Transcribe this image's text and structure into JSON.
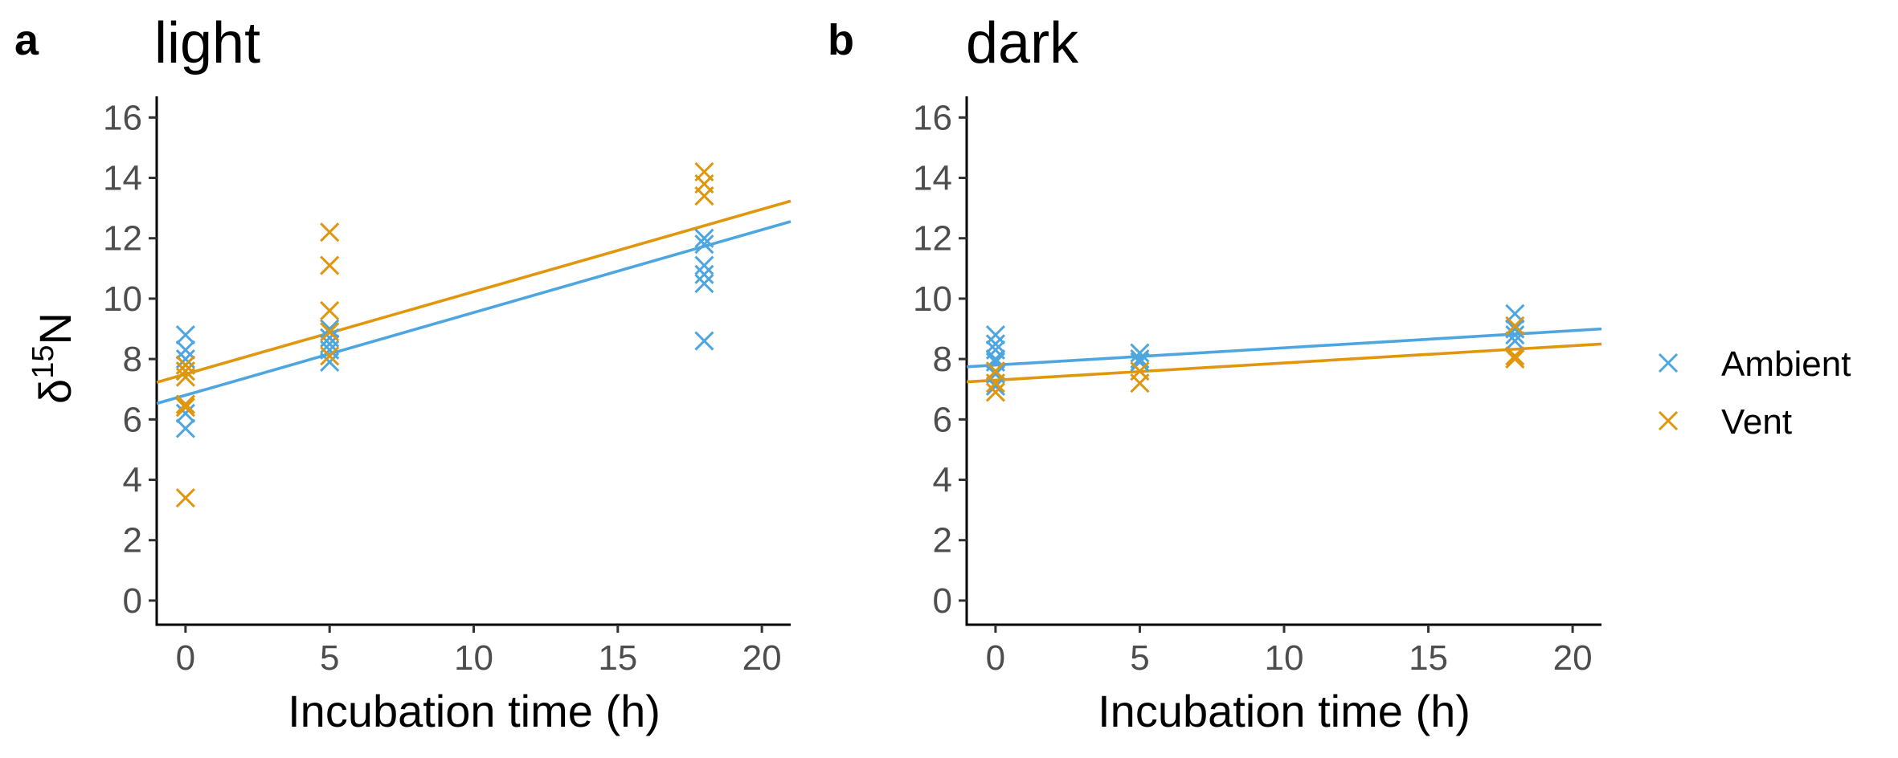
{
  "chart_data": [
    {
      "type": "scatter",
      "panel": "a",
      "title": "light",
      "xlabel": "Incubation time (h)",
      "ylabel_base": "δ",
      "ylabel_sup": "15",
      "ylabel_tail": "N",
      "xlim": [
        -1,
        21
      ],
      "ylim": [
        -0.8,
        16.7
      ],
      "xticks": [
        0,
        5,
        10,
        15,
        20
      ],
      "yticks": [
        0,
        2,
        4,
        6,
        8,
        10,
        12,
        14,
        16
      ],
      "grid": false,
      "series": [
        {
          "name": "Ambient",
          "color": "#4da6df",
          "points": [
            [
              0,
              8.8
            ],
            [
              0,
              8.3
            ],
            [
              0,
              8.0
            ],
            [
              0,
              7.8
            ],
            [
              0,
              7.6
            ],
            [
              0,
              6.5
            ],
            [
              0,
              6.2
            ],
            [
              0,
              5.7
            ],
            [
              5,
              9.0
            ],
            [
              5,
              8.7
            ],
            [
              5,
              8.5
            ],
            [
              5,
              8.3
            ],
            [
              5,
              7.9
            ],
            [
              18,
              12.0
            ],
            [
              18,
              11.8
            ],
            [
              18,
              11.1
            ],
            [
              18,
              10.8
            ],
            [
              18,
              10.5
            ],
            [
              18,
              8.6
            ]
          ],
          "fit": {
            "intercept": 6.8,
            "slope": 0.274
          }
        },
        {
          "name": "Vent",
          "color": "#e0960d",
          "points": [
            [
              0,
              7.8
            ],
            [
              0,
              7.6
            ],
            [
              0,
              7.4
            ],
            [
              0,
              6.5
            ],
            [
              0,
              6.4
            ],
            [
              0,
              3.4
            ],
            [
              5,
              12.2
            ],
            [
              5,
              11.1
            ],
            [
              5,
              9.6
            ],
            [
              5,
              8.9
            ],
            [
              5,
              8.1
            ],
            [
              18,
              14.2
            ],
            [
              18,
              13.8
            ],
            [
              18,
              13.4
            ]
          ],
          "fit": {
            "intercept": 7.5,
            "slope": 0.273
          }
        }
      ]
    },
    {
      "type": "scatter",
      "panel": "b",
      "title": "dark",
      "xlabel": "Incubation time (h)",
      "xlim": [
        -1,
        21
      ],
      "ylim": [
        -0.8,
        16.7
      ],
      "xticks": [
        0,
        5,
        10,
        15,
        20
      ],
      "yticks": [
        0,
        2,
        4,
        6,
        8,
        10,
        12,
        14,
        16
      ],
      "grid": false,
      "series": [
        {
          "name": "Ambient",
          "color": "#4da6df",
          "points": [
            [
              0,
              8.8
            ],
            [
              0,
              8.5
            ],
            [
              0,
              8.3
            ],
            [
              0,
              8.0
            ],
            [
              0,
              7.9
            ],
            [
              0,
              7.5
            ],
            [
              0,
              7.1
            ],
            [
              5,
              8.2
            ],
            [
              5,
              8.0
            ],
            [
              5,
              7.9
            ],
            [
              18,
              9.5
            ],
            [
              18,
              9.0
            ],
            [
              18,
              8.8
            ],
            [
              18,
              8.6
            ]
          ],
          "fit": {
            "intercept": 7.8,
            "slope": 0.057
          }
        },
        {
          "name": "Vent",
          "color": "#e0960d",
          "points": [
            [
              0,
              7.6
            ],
            [
              0,
              7.2
            ],
            [
              0,
              6.9
            ],
            [
              5,
              7.6
            ],
            [
              5,
              7.2
            ],
            [
              18,
              9.1
            ],
            [
              18,
              8.1
            ],
            [
              18,
              8.0
            ]
          ],
          "fit": {
            "intercept": 7.3,
            "slope": 0.057
          }
        }
      ]
    }
  ],
  "legend": {
    "position": "right",
    "items": [
      {
        "label": "Ambient",
        "color": "#4da6df"
      },
      {
        "label": "Vent",
        "color": "#e0960d"
      }
    ]
  }
}
